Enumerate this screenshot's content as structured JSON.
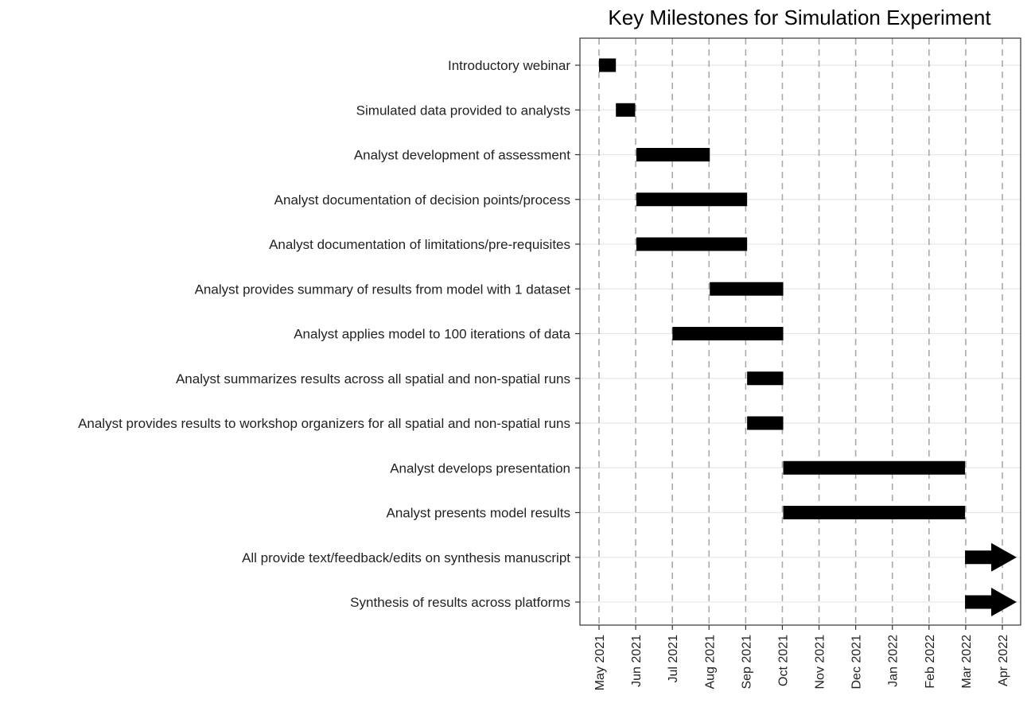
{
  "chart_data": {
    "type": "gantt",
    "title": "Key Milestones for Simulation Experiment",
    "xlabel": "",
    "ylabel": "",
    "x_ticks": [
      "May 2021",
      "Jun 2021",
      "Jul 2021",
      "Aug 2021",
      "Sep 2021",
      "Oct 2021",
      "Nov 2021",
      "Dec 2021",
      "Jan 2022",
      "Feb 2022",
      "Mar 2022",
      "Apr 2022"
    ],
    "xlim": [
      "2021-05-01",
      "2022-04-01"
    ],
    "grid": "vertical dashed at each month; light horizontal at each task",
    "tasks": [
      {
        "label": "Introductory webinar",
        "start": "2021-05-01",
        "end": "2021-05-15",
        "open_end": false
      },
      {
        "label": "Simulated data provided to analysts",
        "start": "2021-05-15",
        "end": "2021-05-31",
        "open_end": false
      },
      {
        "label": "Analyst development of assessment",
        "start": "2021-06-01",
        "end": "2021-08-01",
        "open_end": false
      },
      {
        "label": "Analyst documentation of decision points/process",
        "start": "2021-06-01",
        "end": "2021-09-01",
        "open_end": false
      },
      {
        "label": "Analyst documentation of limitations/pre-requisites",
        "start": "2021-06-01",
        "end": "2021-09-01",
        "open_end": false
      },
      {
        "label": "Analyst provides summary of results from model with 1 dataset",
        "start": "2021-08-01",
        "end": "2021-10-01",
        "open_end": false
      },
      {
        "label": "Analyst applies model to 100 iterations of data",
        "start": "2021-07-01",
        "end": "2021-10-01",
        "open_end": false
      },
      {
        "label": "Analyst summarizes results across all spatial and non-spatial runs",
        "start": "2021-09-01",
        "end": "2021-10-01",
        "open_end": false
      },
      {
        "label": "Analyst provides results to workshop organizers for all spatial and non-spatial runs",
        "start": "2021-09-01",
        "end": "2021-10-01",
        "open_end": false
      },
      {
        "label": "Analyst develops presentation",
        "start": "2021-10-01",
        "end": "2022-03-01",
        "open_end": false
      },
      {
        "label": "Analyst presents model results",
        "start": "2021-10-01",
        "end": "2022-03-01",
        "open_end": false
      },
      {
        "label": "All provide text/feedback/edits on synthesis manuscript",
        "start": "2022-03-01",
        "end": "2022-04-15",
        "open_end": true
      },
      {
        "label": "Synthesis of results across platforms",
        "start": "2022-03-01",
        "end": "2022-04-15",
        "open_end": true
      }
    ]
  }
}
